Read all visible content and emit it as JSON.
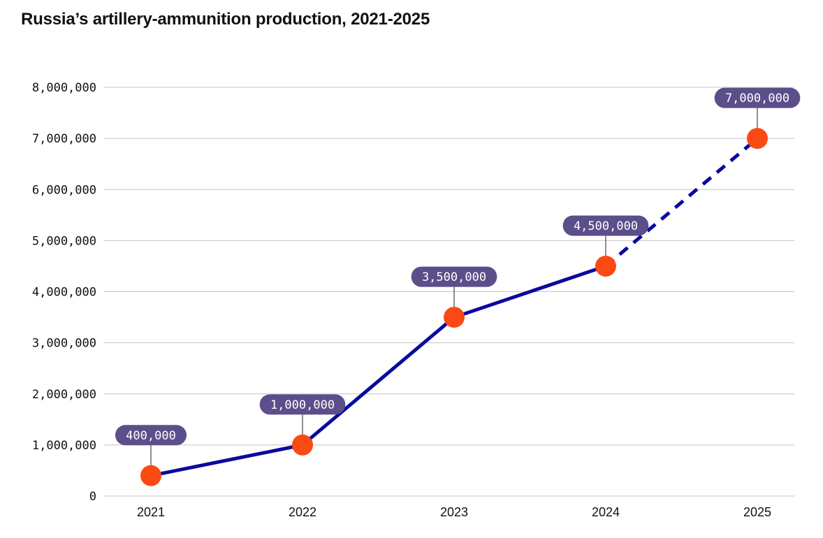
{
  "chart_data": {
    "type": "line",
    "title": "Russia’s artillery-ammunition production, 2021-2025",
    "categories": [
      "2021",
      "2022",
      "2023",
      "2024",
      "2025"
    ],
    "values": [
      400000,
      1000000,
      3500000,
      4500000,
      7000000
    ],
    "value_labels": [
      "400,000",
      "1,000,000",
      "3,500,000",
      "4,500,000",
      "7,000,000"
    ],
    "projected_from_index": 3,
    "ylim": [
      0,
      8000000
    ],
    "yticks": [
      0,
      1000000,
      2000000,
      3000000,
      4000000,
      5000000,
      6000000,
      7000000,
      8000000
    ],
    "ytick_labels": [
      "0",
      "1,000,000",
      "2,000,000",
      "3,000,000",
      "4,000,000",
      "5,000,000",
      "6,000,000",
      "7,000,000",
      "8,000,000"
    ],
    "xlabel": "",
    "ylabel": "",
    "grid": true,
    "colors": {
      "line": "#0a0a9e",
      "marker": "#fa4a14",
      "label_bg": "#5b4e8a",
      "grid": "#c4c4c4"
    }
  }
}
